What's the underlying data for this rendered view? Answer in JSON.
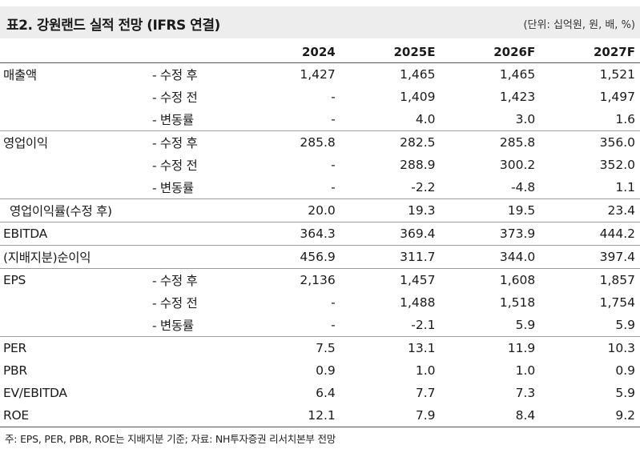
{
  "title": "표2. 강원랜드 실적 전망 (IFRS 연결)",
  "unit": "(단위: 십억원, 원, 배, %)",
  "columns": [
    "2024",
    "2025E",
    "2026F",
    "2027F"
  ],
  "rows": [
    {
      "label": "매출액",
      "sub": "- 수정 후",
      "values": [
        "1,427",
        "1,465",
        "1,465",
        "1,521"
      ]
    },
    {
      "label": "",
      "sub": "- 수정 전",
      "values": [
        "-",
        "1,409",
        "1,423",
        "1,497"
      ]
    },
    {
      "label": "",
      "sub": "- 변동률",
      "values": [
        "-",
        "4.0",
        "3.0",
        "1.6"
      ]
    },
    {
      "label": "영업이익",
      "sub": "- 수정 후",
      "values": [
        "285.8",
        "282.5",
        "285.8",
        "356.0"
      ]
    },
    {
      "label": "",
      "sub": "- 수정 전",
      "values": [
        "-",
        "288.9",
        "300.2",
        "352.0"
      ]
    },
    {
      "label": "",
      "sub": "- 변동률",
      "values": [
        "-",
        "-2.2",
        "-4.8",
        "1.1"
      ]
    },
    {
      "label": "영업이익률(수정 후)",
      "sub": "",
      "values": [
        "20.0",
        "19.3",
        "19.5",
        "23.4"
      ]
    },
    {
      "label": "EBITDA",
      "sub": "",
      "values": [
        "364.3",
        "369.4",
        "373.9",
        "444.2"
      ]
    },
    {
      "label": "(지배지분)순이익",
      "sub": "",
      "values": [
        "456.9",
        "311.7",
        "344.0",
        "397.4"
      ]
    },
    {
      "label": "EPS",
      "sub": "- 수정 후",
      "values": [
        "2,136",
        "1,457",
        "1,608",
        "1,857"
      ]
    },
    {
      "label": "",
      "sub": "- 수정 전",
      "values": [
        "-",
        "1,488",
        "1,518",
        "1,754"
      ]
    },
    {
      "label": "",
      "sub": "- 변동률",
      "values": [
        "-",
        "-2.1",
        "5.9",
        "5.9"
      ]
    },
    {
      "label": "PER",
      "sub": "",
      "values": [
        "7.5",
        "13.1",
        "11.9",
        "10.3"
      ]
    },
    {
      "label": "PBR",
      "sub": "",
      "values": [
        "0.9",
        "1.0",
        "1.0",
        "0.9"
      ]
    },
    {
      "label": "EV/EBITDA",
      "sub": "",
      "values": [
        "6.4",
        "7.7",
        "7.3",
        "5.9"
      ]
    },
    {
      "label": "ROE",
      "sub": "",
      "values": [
        "12.1",
        "7.9",
        "8.4",
        "9.2"
      ]
    }
  ],
  "footnote": "주: EPS, PER, PBR, ROE는 지배지분 기준; 자료: NH투자증권 리서치본부 전망"
}
